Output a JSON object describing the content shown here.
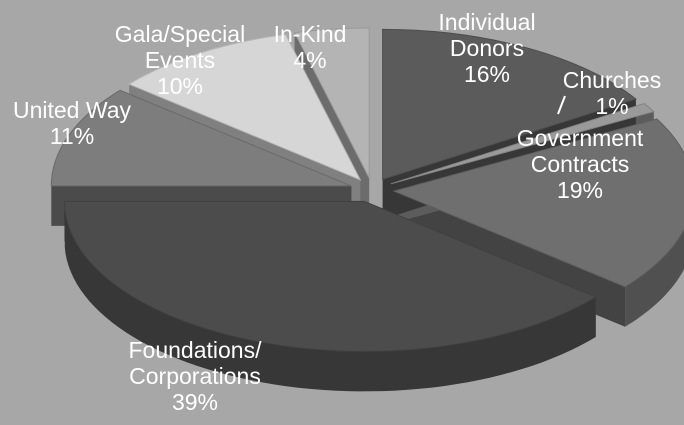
{
  "chart_data": {
    "type": "pie",
    "style": "3d-exploded",
    "slices": [
      {
        "label_lines": [
          "Individual",
          "Donors"
        ],
        "value": 16,
        "value_label": "16%",
        "color": "#5b5b5b"
      },
      {
        "label_lines": [
          "Churches"
        ],
        "value": 1,
        "value_label": "1%",
        "color": "#9a9a9a"
      },
      {
        "label_lines": [
          "Government",
          "Contracts"
        ],
        "value": 19,
        "value_label": "19%",
        "color": "#6f6f6f"
      },
      {
        "label_lines": [
          "Foundations/",
          "Corporations"
        ],
        "value": 39,
        "value_label": "39%",
        "color": "#4c4c4c"
      },
      {
        "label_lines": [
          "United Way"
        ],
        "value": 11,
        "value_label": "11%",
        "color": "#7d7d7d"
      },
      {
        "label_lines": [
          "Gala/Special",
          "Events"
        ],
        "value": 10,
        "value_label": "10%",
        "color": "#d6d6d6"
      },
      {
        "label_lines": [
          "In-Kind"
        ],
        "value": 4,
        "value_label": "4%",
        "color": "#b4b4b4"
      }
    ],
    "legend": "none"
  }
}
